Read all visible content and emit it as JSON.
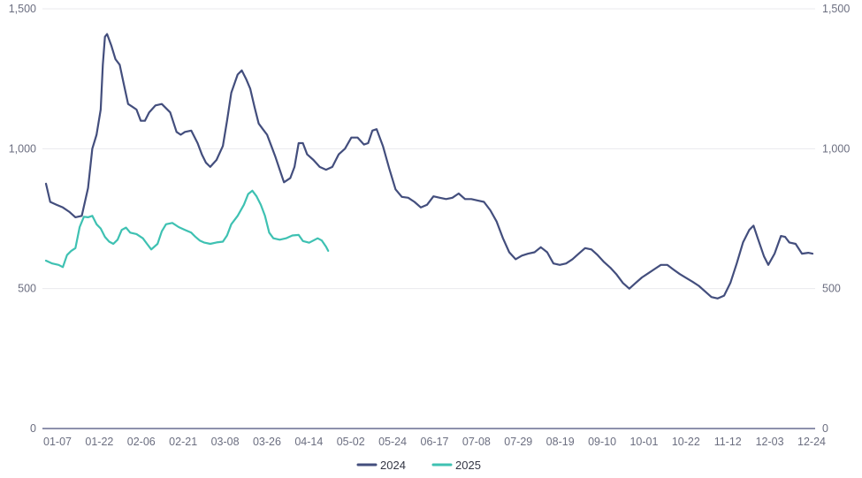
{
  "chart_data": {
    "type": "line",
    "title": "",
    "xlabel": "",
    "ylabel": "",
    "ylim": [
      0,
      1500
    ],
    "y_ticks": [
      "0",
      "500",
      "1,000",
      "1,500"
    ],
    "y_tick_values": [
      0,
      500,
      1000,
      1500
    ],
    "dual_y_axis_labels": true,
    "grid": "horizontal",
    "legend_position": "bottom-center",
    "x_tick_labels": [
      "01-07",
      "01-22",
      "02-06",
      "02-21",
      "03-08",
      "03-26",
      "04-14",
      "05-02",
      "05-24",
      "06-17",
      "07-08",
      "07-29",
      "08-19",
      "09-10",
      "10-01",
      "10-22",
      "11-12",
      "12-03",
      "12-24"
    ],
    "series": [
      {
        "name": "2024",
        "color": "#434e7d",
        "points": [
          [
            "01-02",
            875
          ],
          [
            "01-04",
            810
          ],
          [
            "01-07",
            800
          ],
          [
            "01-10",
            790
          ],
          [
            "01-13",
            775
          ],
          [
            "01-16",
            755
          ],
          [
            "01-19",
            760
          ],
          [
            "01-22",
            860
          ],
          [
            "01-24",
            1000
          ],
          [
            "01-26",
            1050
          ],
          [
            "01-28",
            1140
          ],
          [
            "01-29",
            1300
          ],
          [
            "01-30",
            1400
          ],
          [
            "01-31",
            1410
          ],
          [
            "02-02",
            1370
          ],
          [
            "02-04",
            1320
          ],
          [
            "02-06",
            1300
          ],
          [
            "02-08",
            1230
          ],
          [
            "02-10",
            1160
          ],
          [
            "02-12",
            1150
          ],
          [
            "02-14",
            1140
          ],
          [
            "02-16",
            1100
          ],
          [
            "02-18",
            1100
          ],
          [
            "02-20",
            1130
          ],
          [
            "02-23",
            1155
          ],
          [
            "02-26",
            1160
          ],
          [
            "03-01",
            1130
          ],
          [
            "03-04",
            1060
          ],
          [
            "03-06",
            1050
          ],
          [
            "03-08",
            1060
          ],
          [
            "03-11",
            1065
          ],
          [
            "03-14",
            1020
          ],
          [
            "03-16",
            980
          ],
          [
            "03-18",
            950
          ],
          [
            "03-20",
            935
          ],
          [
            "03-23",
            960
          ],
          [
            "03-26",
            1010
          ],
          [
            "03-28",
            1100
          ],
          [
            "03-30",
            1200
          ],
          [
            "04-02",
            1265
          ],
          [
            "04-04",
            1280
          ],
          [
            "04-06",
            1250
          ],
          [
            "04-08",
            1215
          ],
          [
            "04-10",
            1150
          ],
          [
            "04-12",
            1090
          ],
          [
            "04-14",
            1070
          ],
          [
            "04-16",
            1050
          ],
          [
            "04-18",
            1010
          ],
          [
            "04-20",
            970
          ],
          [
            "04-22",
            925
          ],
          [
            "04-24",
            880
          ],
          [
            "04-27",
            895
          ],
          [
            "04-29",
            935
          ],
          [
            "05-01",
            1020
          ],
          [
            "05-03",
            1020
          ],
          [
            "05-05",
            980
          ],
          [
            "05-08",
            960
          ],
          [
            "05-11",
            935
          ],
          [
            "05-14",
            925
          ],
          [
            "05-17",
            935
          ],
          [
            "05-20",
            980
          ],
          [
            "05-23",
            1000
          ],
          [
            "05-26",
            1040
          ],
          [
            "05-29",
            1040
          ],
          [
            "06-01",
            1015
          ],
          [
            "06-03",
            1020
          ],
          [
            "06-05",
            1065
          ],
          [
            "06-07",
            1070
          ],
          [
            "06-10",
            1010
          ],
          [
            "06-13",
            930
          ],
          [
            "06-16",
            855
          ],
          [
            "06-19",
            828
          ],
          [
            "06-22",
            825
          ],
          [
            "06-25",
            810
          ],
          [
            "06-28",
            790
          ],
          [
            "07-01",
            800
          ],
          [
            "07-04",
            830
          ],
          [
            "07-07",
            825
          ],
          [
            "07-10",
            820
          ],
          [
            "07-13",
            825
          ],
          [
            "07-16",
            840
          ],
          [
            "07-19",
            820
          ],
          [
            "07-22",
            820
          ],
          [
            "07-25",
            815
          ],
          [
            "07-28",
            810
          ],
          [
            "07-31",
            780
          ],
          [
            "08-03",
            740
          ],
          [
            "08-06",
            680
          ],
          [
            "08-09",
            630
          ],
          [
            "08-12",
            605
          ],
          [
            "08-15",
            618
          ],
          [
            "08-18",
            625
          ],
          [
            "08-21",
            630
          ],
          [
            "08-24",
            648
          ],
          [
            "08-27",
            630
          ],
          [
            "08-30",
            590
          ],
          [
            "09-02",
            585
          ],
          [
            "09-05",
            590
          ],
          [
            "09-08",
            605
          ],
          [
            "09-11",
            625
          ],
          [
            "09-14",
            645
          ],
          [
            "09-17",
            640
          ],
          [
            "09-20",
            620
          ],
          [
            "09-23",
            595
          ],
          [
            "09-26",
            575
          ],
          [
            "09-29",
            550
          ],
          [
            "10-02",
            520
          ],
          [
            "10-05",
            500
          ],
          [
            "10-08",
            520
          ],
          [
            "10-11",
            540
          ],
          [
            "10-14",
            555
          ],
          [
            "10-17",
            570
          ],
          [
            "10-20",
            585
          ],
          [
            "10-23",
            585
          ],
          [
            "10-26",
            568
          ],
          [
            "10-29",
            552
          ],
          [
            "11-01",
            538
          ],
          [
            "11-04",
            525
          ],
          [
            "11-07",
            510
          ],
          [
            "11-10",
            490
          ],
          [
            "11-13",
            470
          ],
          [
            "11-16",
            465
          ],
          [
            "11-19",
            475
          ],
          [
            "11-22",
            520
          ],
          [
            "11-25",
            590
          ],
          [
            "11-28",
            665
          ],
          [
            "12-01",
            710
          ],
          [
            "12-03",
            725
          ],
          [
            "12-05",
            680
          ],
          [
            "12-08",
            615
          ],
          [
            "12-10",
            585
          ],
          [
            "12-13",
            625
          ],
          [
            "12-16",
            688
          ],
          [
            "12-18",
            685
          ],
          [
            "12-20",
            665
          ],
          [
            "12-23",
            660
          ],
          [
            "12-26",
            625
          ],
          [
            "12-29",
            628
          ],
          [
            "12-31",
            625
          ]
        ]
      },
      {
        "name": "2025",
        "color": "#3ec1b2",
        "points": [
          [
            "01-02",
            600
          ],
          [
            "01-05",
            590
          ],
          [
            "01-08",
            585
          ],
          [
            "01-10",
            577
          ],
          [
            "01-12",
            620
          ],
          [
            "01-14",
            635
          ],
          [
            "01-16",
            645
          ],
          [
            "01-18",
            720
          ],
          [
            "01-20",
            757
          ],
          [
            "01-22",
            755
          ],
          [
            "01-24",
            760
          ],
          [
            "01-26",
            730
          ],
          [
            "01-28",
            715
          ],
          [
            "01-30",
            685
          ],
          [
            "02-01",
            668
          ],
          [
            "02-03",
            660
          ],
          [
            "02-05",
            675
          ],
          [
            "02-07",
            710
          ],
          [
            "02-09",
            718
          ],
          [
            "02-11",
            700
          ],
          [
            "02-14",
            695
          ],
          [
            "02-17",
            680
          ],
          [
            "02-19",
            660
          ],
          [
            "02-21",
            640
          ],
          [
            "02-24",
            660
          ],
          [
            "02-26",
            705
          ],
          [
            "02-28",
            730
          ],
          [
            "03-02",
            735
          ],
          [
            "03-05",
            720
          ],
          [
            "03-08",
            710
          ],
          [
            "03-11",
            700
          ],
          [
            "03-13",
            685
          ],
          [
            "03-15",
            672
          ],
          [
            "03-17",
            665
          ],
          [
            "03-20",
            660
          ],
          [
            "03-23",
            665
          ],
          [
            "03-26",
            668
          ],
          [
            "03-28",
            690
          ],
          [
            "03-30",
            730
          ],
          [
            "04-02",
            760
          ],
          [
            "04-05",
            800
          ],
          [
            "04-07",
            838
          ],
          [
            "04-09",
            850
          ],
          [
            "04-11",
            830
          ],
          [
            "04-13",
            800
          ],
          [
            "04-15",
            760
          ],
          [
            "04-17",
            700
          ],
          [
            "04-19",
            680
          ],
          [
            "04-22",
            675
          ],
          [
            "04-25",
            680
          ],
          [
            "04-28",
            690
          ],
          [
            "05-01",
            692
          ],
          [
            "05-03",
            670
          ],
          [
            "05-06",
            664
          ],
          [
            "05-08",
            672
          ],
          [
            "05-10",
            680
          ],
          [
            "05-12",
            672
          ],
          [
            "05-14",
            650
          ],
          [
            "05-15",
            635
          ]
        ]
      }
    ]
  }
}
